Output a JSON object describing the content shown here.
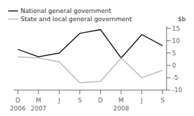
{
  "chart_data": {
    "type": "line",
    "categories": [
      "D",
      "M",
      "J",
      "S",
      "D",
      "M",
      "J",
      "S"
    ],
    "series": [
      {
        "name": "National general government",
        "color": "#1a1a1a",
        "values": [
          6.5,
          3.5,
          5.0,
          13.0,
          14.5,
          3.0,
          12.5,
          8.0
        ]
      },
      {
        "name": "State and local general government",
        "color": "#bbbbbb",
        "values": [
          3.5,
          3.0,
          1.5,
          -7.0,
          -6.5,
          3.0,
          -5.0,
          -2.0
        ]
      }
    ],
    "y_label": "$b",
    "ylim": [
      -10,
      16
    ],
    "yticks": [
      -10,
      -5,
      0,
      5,
      10,
      15
    ],
    "annotations": [
      {
        "text": "2006",
        "x": 0
      },
      {
        "text": "2007",
        "x": 1
      },
      {
        "text": "2008",
        "x": 5
      }
    ],
    "grid": false,
    "legend": "upper left"
  }
}
